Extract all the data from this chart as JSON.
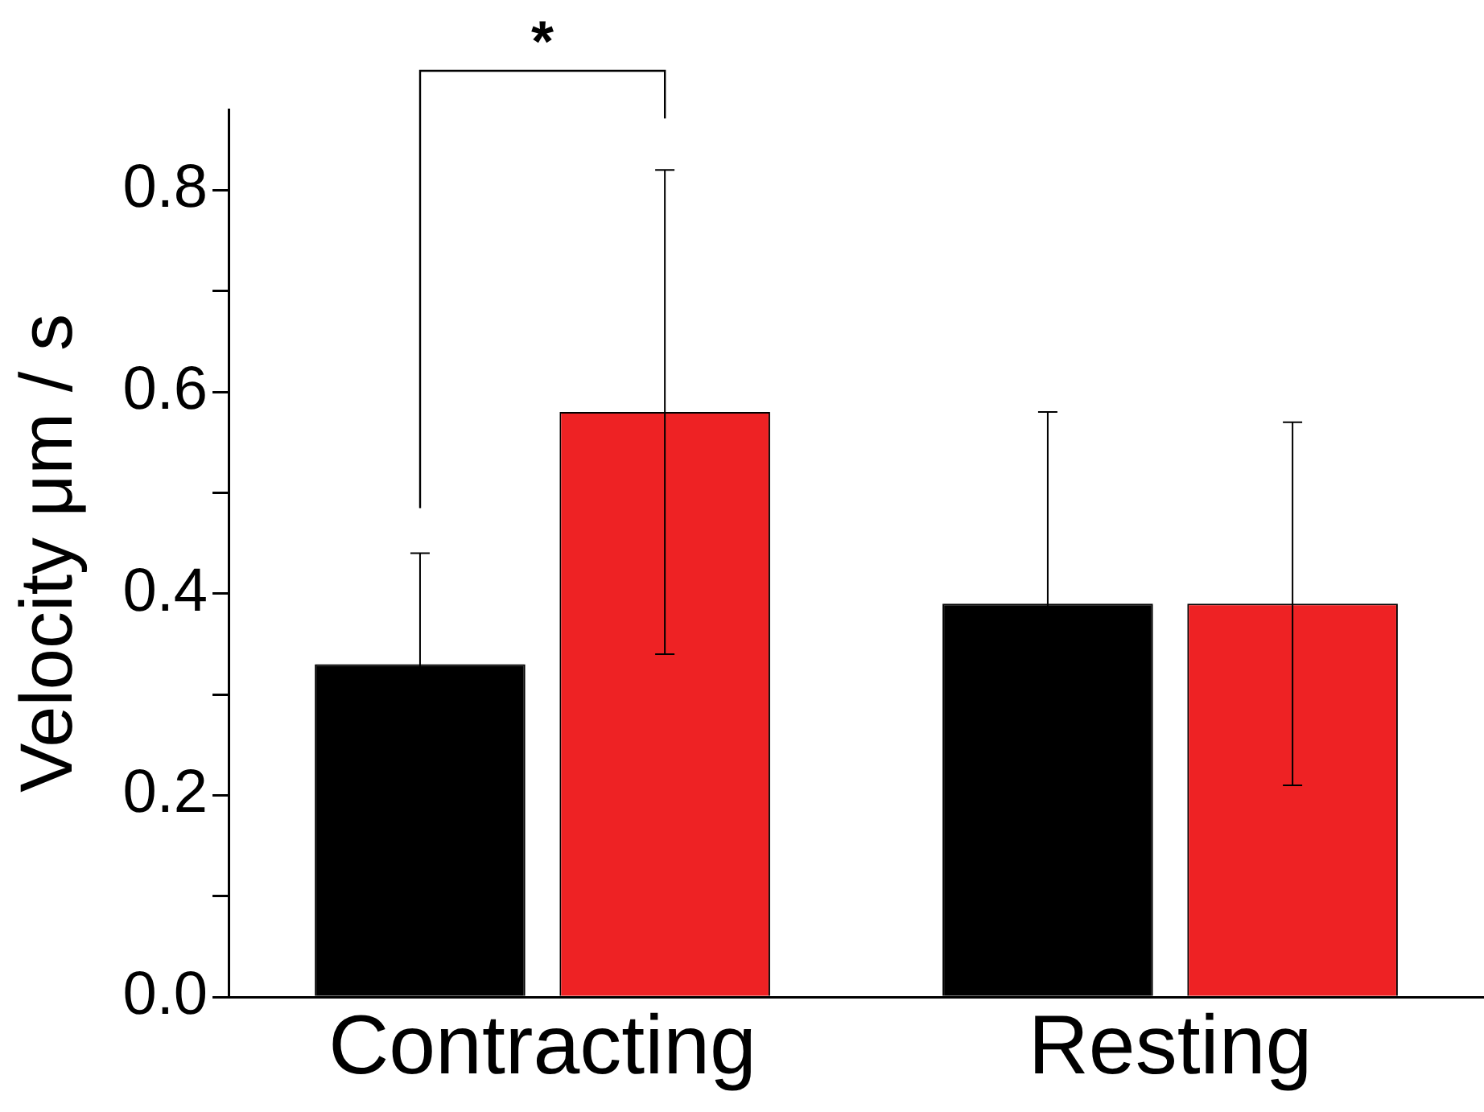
{
  "chart_data": {
    "type": "bar",
    "ylabel": "Velocity μm / s",
    "categories": [
      "Contracting",
      "Resting"
    ],
    "series": [
      {
        "color": "#000000",
        "values": [
          0.33,
          0.39
        ],
        "errors": [
          0.11,
          0.19
        ]
      },
      {
        "color": "#ee2224",
        "values": [
          0.58,
          0.39
        ],
        "errors": [
          0.24,
          0.18
        ]
      }
    ],
    "ylim": [
      0,
      0.88
    ],
    "yticks": [
      {
        "value": 0,
        "label": "0.0"
      },
      {
        "value": 0.1,
        "label": null
      },
      0.2,
      {
        "value": 0.3,
        "label": null
      },
      0.4,
      {
        "value": 0.5,
        "label": null
      },
      0.6,
      {
        "value": 0.7,
        "label": null
      },
      0.8
    ],
    "grid": false,
    "legend": false,
    "annotations": [
      "*"
    ]
  }
}
